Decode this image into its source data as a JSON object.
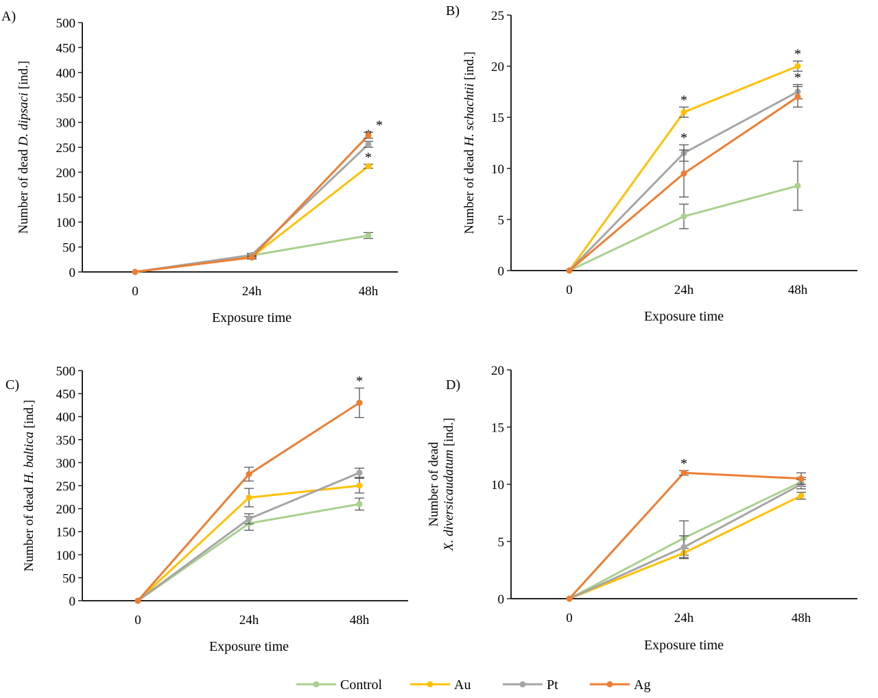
{
  "legend": {
    "position": "bottom",
    "entries": [
      "Control",
      "Au",
      "Pt",
      "Ag"
    ]
  },
  "colors": {
    "Control": "#a9d18e",
    "Au": "#ffc000",
    "Pt": "#a5a5a5",
    "Ag": "#ed7d31"
  },
  "chart_data": [
    {
      "type": "line",
      "panel_label": "A)",
      "categories": [
        "0",
        "24h",
        "48h"
      ],
      "xlabel": "Exposure time",
      "ylabel_parts": [
        "Number of dead ",
        "D. dipsaci",
        " [ind.]"
      ],
      "ylim": [
        0,
        500
      ],
      "yticks": [
        0,
        50,
        100,
        150,
        200,
        250,
        300,
        350,
        400,
        450,
        500
      ],
      "series": [
        {
          "name": "Control",
          "values": [
            0,
            33,
            73
          ],
          "errors": [
            0,
            3,
            6
          ],
          "significant": [
            false,
            false,
            false
          ]
        },
        {
          "name": "Au",
          "values": [
            0,
            30,
            212
          ],
          "errors": [
            0,
            3,
            4
          ],
          "significant": [
            false,
            false,
            true
          ]
        },
        {
          "name": "Pt",
          "values": [
            0,
            34,
            256
          ],
          "errors": [
            0,
            3,
            6
          ],
          "significant": [
            false,
            false,
            true
          ]
        },
        {
          "name": "Ag",
          "values": [
            0,
            29,
            274
          ],
          "errors": [
            0,
            3,
            6
          ],
          "significant": [
            false,
            false,
            true
          ]
        }
      ],
      "annotation": "*"
    },
    {
      "type": "line",
      "panel_label": "B)",
      "categories": [
        "0",
        "24h",
        "48h"
      ],
      "xlabel": "Exposure time",
      "ylabel_parts": [
        "Number of dead ",
        "H. schachtii",
        " [ind.]"
      ],
      "ylim": [
        0,
        25
      ],
      "yticks": [
        0,
        5,
        10,
        15,
        20,
        25
      ],
      "series": [
        {
          "name": "Control",
          "values": [
            0,
            5.3,
            8.3
          ],
          "errors": [
            0,
            1.2,
            2.4
          ],
          "significant": [
            false,
            false,
            false
          ]
        },
        {
          "name": "Au",
          "values": [
            0,
            15.5,
            20
          ],
          "errors": [
            0,
            0.5,
            0.5
          ],
          "significant": [
            false,
            true,
            true
          ]
        },
        {
          "name": "Pt",
          "values": [
            0,
            11.5,
            17.5
          ],
          "errors": [
            0,
            0.8,
            0.7
          ],
          "significant": [
            false,
            true,
            true
          ]
        },
        {
          "name": "Ag",
          "values": [
            0,
            9.5,
            17
          ],
          "errors": [
            0,
            2.3,
            1.0
          ],
          "significant": [
            false,
            false,
            false
          ]
        }
      ],
      "annotation": "*"
    },
    {
      "type": "line",
      "panel_label": "C)",
      "categories": [
        "0",
        "24h",
        "48h"
      ],
      "xlabel": "Exposure time",
      "ylabel_parts": [
        "Number of dead ",
        "H. baltica",
        " [ind.]"
      ],
      "ylim": [
        0,
        500
      ],
      "yticks": [
        0,
        50,
        100,
        150,
        200,
        250,
        300,
        350,
        400,
        450,
        500
      ],
      "series": [
        {
          "name": "Control",
          "values": [
            0,
            168,
            210
          ],
          "errors": [
            0,
            15,
            13
          ],
          "significant": [
            false,
            false,
            false
          ]
        },
        {
          "name": "Au",
          "values": [
            0,
            224,
            250
          ],
          "errors": [
            0,
            20,
            16
          ],
          "significant": [
            false,
            false,
            false
          ]
        },
        {
          "name": "Pt",
          "values": [
            0,
            178,
            278
          ],
          "errors": [
            0,
            11,
            10
          ],
          "significant": [
            false,
            false,
            false
          ]
        },
        {
          "name": "Ag",
          "values": [
            0,
            275,
            430
          ],
          "errors": [
            0,
            15,
            32
          ],
          "significant": [
            false,
            false,
            true
          ]
        }
      ],
      "annotation": "*"
    },
    {
      "type": "line",
      "panel_label": "D)",
      "categories": [
        "0",
        "24h",
        "48h"
      ],
      "xlabel": "Exposure time",
      "ylabel_line1": "Number of dead",
      "ylabel_parts": [
        "",
        "X. diversicaudatum",
        " [ind.]"
      ],
      "ylim": [
        0,
        20
      ],
      "yticks": [
        0,
        5,
        10,
        15,
        20
      ],
      "series": [
        {
          "name": "Control",
          "values": [
            0,
            5.3,
            10.2
          ],
          "errors": [
            0,
            1.5,
            0.4
          ],
          "significant": [
            false,
            false,
            false
          ]
        },
        {
          "name": "Au",
          "values": [
            0,
            4,
            9
          ],
          "errors": [
            0,
            0.4,
            0.3
          ],
          "significant": [
            false,
            false,
            false
          ]
        },
        {
          "name": "Pt",
          "values": [
            0,
            4.5,
            10
          ],
          "errors": [
            0,
            1.0,
            0.4
          ],
          "significant": [
            false,
            false,
            false
          ]
        },
        {
          "name": "Ag",
          "values": [
            0,
            11,
            10.5
          ],
          "errors": [
            0,
            0.2,
            0.5
          ],
          "significant": [
            false,
            true,
            false
          ]
        }
      ],
      "annotation": "*"
    }
  ]
}
